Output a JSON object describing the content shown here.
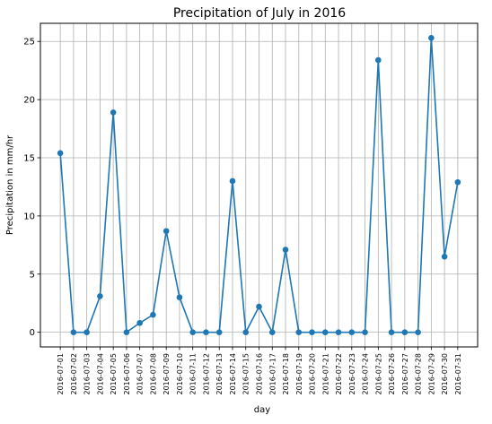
{
  "chart_data": {
    "type": "line",
    "title": "Precipitation of July in 2016",
    "xlabel": "day",
    "ylabel": "Precipitation in mm/hr",
    "categories": [
      "2016-07-01",
      "2016-07-02",
      "2016-07-03",
      "2016-07-04",
      "2016-07-05",
      "2016-07-06",
      "2016-07-07",
      "2016-07-08",
      "2016-07-09",
      "2016-07-10",
      "2016-07-11",
      "2016-07-12",
      "2016-07-13",
      "2016-07-14",
      "2016-07-15",
      "2016-07-16",
      "2016-07-17",
      "2016-07-18",
      "2016-07-19",
      "2016-07-20",
      "2016-07-21",
      "2016-07-22",
      "2016-07-23",
      "2016-07-24",
      "2016-07-25",
      "2016-07-26",
      "2016-07-27",
      "2016-07-28",
      "2016-07-29",
      "2016-07-30",
      "2016-07-31"
    ],
    "values": [
      15.4,
      0,
      0,
      3.1,
      18.9,
      0,
      0.8,
      1.5,
      8.7,
      3.0,
      0,
      0,
      0,
      13.0,
      0,
      2.2,
      0,
      7.1,
      0,
      0,
      0,
      0,
      0,
      0,
      23.4,
      0,
      0,
      0,
      25.3,
      6.5,
      12.9
    ],
    "ylim": [
      -1.26,
      26.56
    ],
    "yticks": [
      0,
      5,
      10,
      15,
      20,
      25
    ],
    "grid": true,
    "legend": "none",
    "line_color": "#1f77b4"
  }
}
